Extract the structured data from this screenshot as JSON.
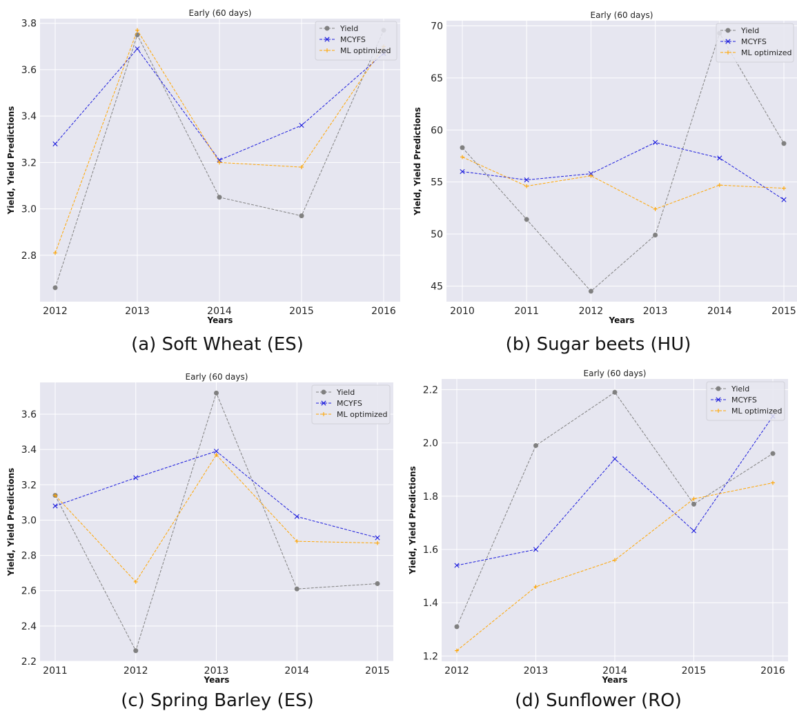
{
  "colors": {
    "plot_bg": "#e6e6f0",
    "grid": "#ffffff",
    "yield": "#808080",
    "mcyfs": "#1a1adc",
    "ml": "#ffa500"
  },
  "chart_data": [
    {
      "type": "line",
      "title": "Early (60 days)",
      "caption": "(a) Soft Wheat (ES)",
      "xlabel": "Years",
      "ylabel": "Yield, Yield Predictions",
      "x": [
        "2012",
        "2013",
        "2014",
        "2015",
        "2016"
      ],
      "yticks": [
        "2.8",
        "3.0",
        "3.2",
        "3.4",
        "3.6",
        "3.8"
      ],
      "ylim": [
        2.6,
        3.82
      ],
      "legend_position": "top-right",
      "grid": true,
      "series": [
        {
          "name": "Yield",
          "marker": "circle",
          "values": [
            2.66,
            3.75,
            3.05,
            2.97,
            3.77
          ]
        },
        {
          "name": "MCYFS",
          "marker": "x",
          "values": [
            3.28,
            3.69,
            3.21,
            3.36,
            3.67
          ]
        },
        {
          "name": "ML optimized",
          "marker": "plus",
          "values": [
            2.81,
            3.77,
            3.2,
            3.18,
            3.7
          ]
        }
      ]
    },
    {
      "type": "line",
      "title": "Early (60 days)",
      "caption": "(b) Sugar beets (HU)",
      "xlabel": "Years",
      "ylabel": "Yield, Yield Predictions",
      "x": [
        "2010",
        "2011",
        "2012",
        "2013",
        "2014",
        "2015"
      ],
      "yticks": [
        "45",
        "50",
        "55",
        "60",
        "65",
        "70"
      ],
      "ylim": [
        43.5,
        70.5
      ],
      "legend_position": "top-right",
      "grid": true,
      "series": [
        {
          "name": "Yield",
          "marker": "circle",
          "values": [
            58.3,
            51.4,
            44.5,
            49.9,
            69.3,
            58.7
          ]
        },
        {
          "name": "MCYFS",
          "marker": "x",
          "values": [
            56.0,
            55.2,
            55.8,
            58.8,
            57.3,
            53.3
          ]
        },
        {
          "name": "ML optimized",
          "marker": "plus",
          "values": [
            57.4,
            54.6,
            55.6,
            52.4,
            54.7,
            54.4
          ]
        }
      ]
    },
    {
      "type": "line",
      "title": "Early (60 days)",
      "caption": "(c) Spring Barley (ES)",
      "xlabel": "Years",
      "ylabel": "Yield, Yield Predictions",
      "x": [
        "2011",
        "2012",
        "2013",
        "2014",
        "2015"
      ],
      "yticks": [
        "2.2",
        "2.4",
        "2.6",
        "2.8",
        "3.0",
        "3.2",
        "3.4",
        "3.6"
      ],
      "ylim": [
        2.2,
        3.78
      ],
      "legend_position": "top-right",
      "grid": true,
      "series": [
        {
          "name": "Yield",
          "marker": "circle",
          "values": [
            3.14,
            2.26,
            3.72,
            2.61,
            2.64
          ]
        },
        {
          "name": "MCYFS",
          "marker": "x",
          "values": [
            3.08,
            3.24,
            3.39,
            3.02,
            2.9
          ]
        },
        {
          "name": "ML optimized",
          "marker": "plus",
          "values": [
            3.14,
            2.65,
            3.37,
            2.88,
            2.87
          ]
        }
      ]
    },
    {
      "type": "line",
      "title": "Early (60 days)",
      "caption": "(d) Sunflower (RO)",
      "xlabel": "Years",
      "ylabel": "Yield, Yield Predictions",
      "x": [
        "2012",
        "2013",
        "2014",
        "2015",
        "2016"
      ],
      "yticks": [
        "1.2",
        "1.4",
        "1.6",
        "1.8",
        "2.0",
        "2.2"
      ],
      "ylim": [
        1.18,
        2.24
      ],
      "legend_position": "top-right",
      "grid": true,
      "series": [
        {
          "name": "Yield",
          "marker": "circle",
          "values": [
            1.31,
            1.99,
            2.19,
            1.77,
            1.96
          ]
        },
        {
          "name": "MCYFS",
          "marker": "x",
          "values": [
            1.54,
            1.6,
            1.94,
            1.67,
            2.1
          ]
        },
        {
          "name": "ML optimized",
          "marker": "plus",
          "values": [
            1.22,
            1.46,
            1.56,
            1.79,
            1.85
          ]
        }
      ]
    }
  ]
}
